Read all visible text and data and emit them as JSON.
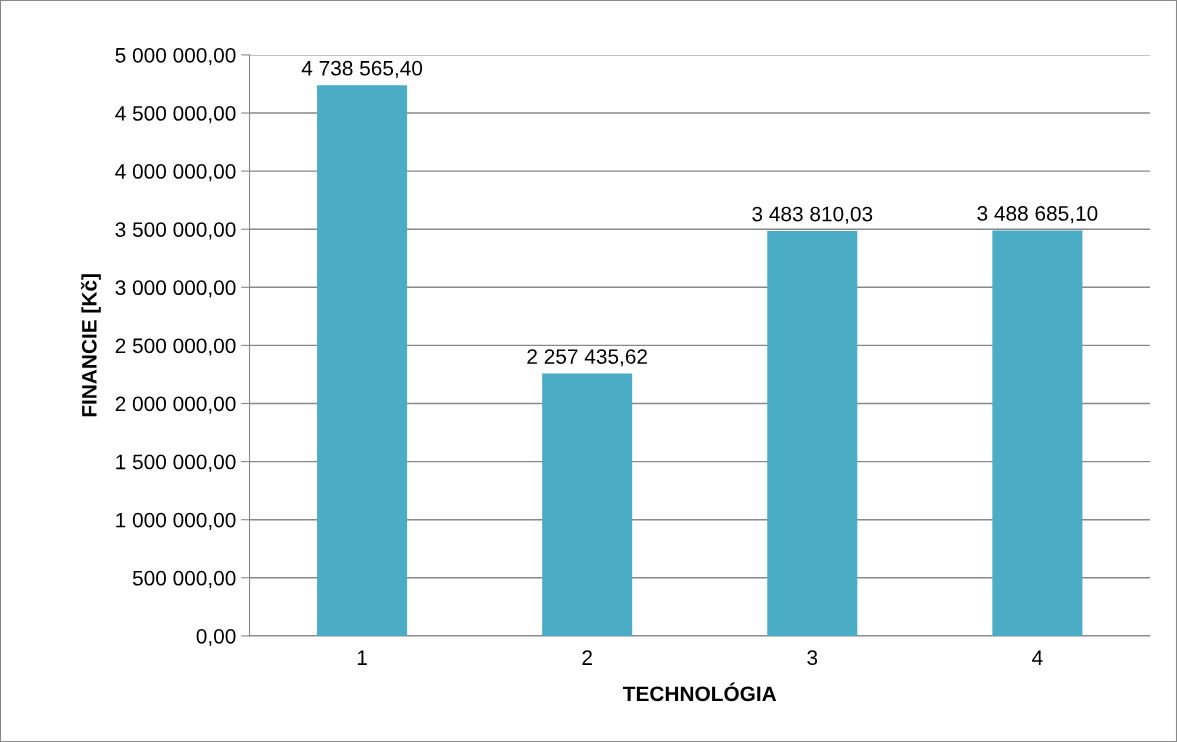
{
  "chart_data": {
    "type": "bar",
    "xlabel": "TECHNOLÓGIA",
    "ylabel": "FINANCIE [Kč]",
    "categories": [
      "1",
      "2",
      "3",
      "4"
    ],
    "values": [
      4738565.4,
      2257435.62,
      3483810.03,
      3488685.1
    ],
    "value_labels": [
      "4 738 565,40",
      "2 257 435,62",
      "3 483 810,03",
      "3 488 685,10"
    ],
    "color": "#4bacc6",
    "ylim": [
      0,
      5000000
    ],
    "yticks": [
      {
        "value": 0,
        "label": "0,00"
      },
      {
        "value": 500000,
        "label": "500 000,00"
      },
      {
        "value": 1000000,
        "label": "1 000 000,00"
      },
      {
        "value": 1500000,
        "label": "1 500 000,00"
      },
      {
        "value": 2000000,
        "label": "2 000 000,00"
      },
      {
        "value": 2500000,
        "label": "2 500 000,00"
      },
      {
        "value": 3000000,
        "label": "3 000 000,00"
      },
      {
        "value": 3500000,
        "label": "3 500 000,00"
      },
      {
        "value": 4000000,
        "label": "4 000 000,00"
      },
      {
        "value": 4500000,
        "label": "4 500 000,00"
      },
      {
        "value": 5000000,
        "label": "5 000 000,00"
      }
    ],
    "grid": "y"
  }
}
